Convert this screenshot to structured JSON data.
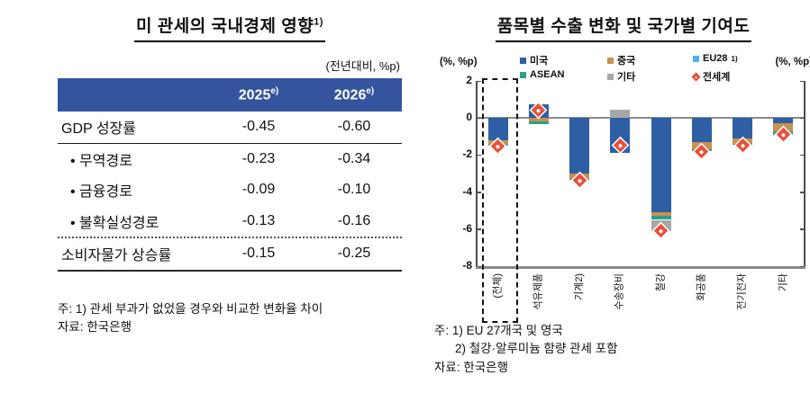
{
  "chart_data": [
    {
      "type": "table",
      "title": "미 관세의 국내경제 영향",
      "title_sup": "1)",
      "unit": "(전년대비, %p)",
      "col_headers": [
        {
          "label": "2025",
          "sup": "e)"
        },
        {
          "label": "2026",
          "sup": "e)"
        }
      ],
      "rows": [
        {
          "label": "GDP 성장률",
          "values": [
            "-0.45",
            "-0.60"
          ]
        },
        {
          "label": "• 무역경로",
          "values": [
            "-0.23",
            "-0.34"
          ]
        },
        {
          "label": "• 금융경로",
          "values": [
            "-0.09",
            "-0.10"
          ]
        },
        {
          "label": "• 불확실성경로",
          "values": [
            "-0.13",
            "-0.16"
          ]
        },
        {
          "label": "소비자물가 상승률",
          "values": [
            "-0.15",
            "-0.25"
          ]
        }
      ],
      "header_bg": "#34549D",
      "footnotes": [
        "주: 1) 관세 부과가 없었을 경우와 비교한 변화율 차이",
        "자료: 한국은행"
      ]
    },
    {
      "type": "bar",
      "title": "품목별 수출 변화 및 국가별 기여도",
      "unit_left": "(%, %p)",
      "unit_right": "(%, %p)",
      "ylim": [
        -8,
        2
      ],
      "yticks": [
        2,
        0,
        -2,
        -4,
        -6,
        -8
      ],
      "grid": false,
      "legend_position": "top",
      "series": [
        {
          "key": "us",
          "name": "미국",
          "color": "#2E5EA4"
        },
        {
          "key": "china",
          "name": "중국",
          "color": "#C8924E"
        },
        {
          "key": "eu",
          "name": "EU28",
          "name_sup": "1)",
          "color": "#4DB3E6"
        },
        {
          "key": "asean",
          "name": "ASEAN",
          "color": "#2BA08F"
        },
        {
          "key": "etc",
          "name": "기타",
          "color": "#A7A7A7"
        }
      ],
      "marker_series": {
        "name": "전세계",
        "color": "#E8513B",
        "shape": "diamond"
      },
      "categories": [
        "(전체)",
        "석유제품",
        "기계2)",
        "수송장비",
        "철강",
        "화공품",
        "전기전자",
        "기타"
      ],
      "highlight_index": 0,
      "bars": [
        {
          "category": "(전체)",
          "us": -1.2,
          "china": -0.2,
          "eu": 0,
          "asean": -0.05,
          "etc": -0.05,
          "total": -1.5
        },
        {
          "category": "석유제품",
          "us": 0.75,
          "china": -0.2,
          "eu": 0,
          "asean": -0.15,
          "etc": 0,
          "total": 0.4
        },
        {
          "category": "기계2)",
          "us": -3.0,
          "china": -0.3,
          "eu": 0,
          "asean": -0.05,
          "etc": 0,
          "total": -3.35
        },
        {
          "category": "수송장비",
          "us": -1.9,
          "china": 0,
          "eu": 0,
          "asean": 0,
          "etc": 0.45,
          "total": -1.45
        },
        {
          "category": "철강",
          "us": -5.1,
          "china": -0.2,
          "eu": 0,
          "asean": -0.2,
          "etc": -0.6,
          "total": -6.1
        },
        {
          "category": "화공품",
          "us": -1.3,
          "china": -0.4,
          "eu": 0,
          "asean": -0.1,
          "etc": 0,
          "total": -1.8
        },
        {
          "category": "전기전자",
          "us": -1.1,
          "china": -0.3,
          "eu": 0,
          "asean": -0.05,
          "etc": 0,
          "total": -1.45
        },
        {
          "category": "기타",
          "us": -0.3,
          "china": -0.4,
          "eu": 0,
          "asean": -0.2,
          "etc": 0,
          "total": -0.9
        }
      ],
      "axis_color": "#4D4D4D",
      "zero_line_color": "#8A8A8A",
      "footnotes": [
        "주: 1) EU 27개국 및 영국",
        "2) 철강·알루미늄 함량 관세 포함",
        "자료: 한국은행"
      ]
    }
  ]
}
